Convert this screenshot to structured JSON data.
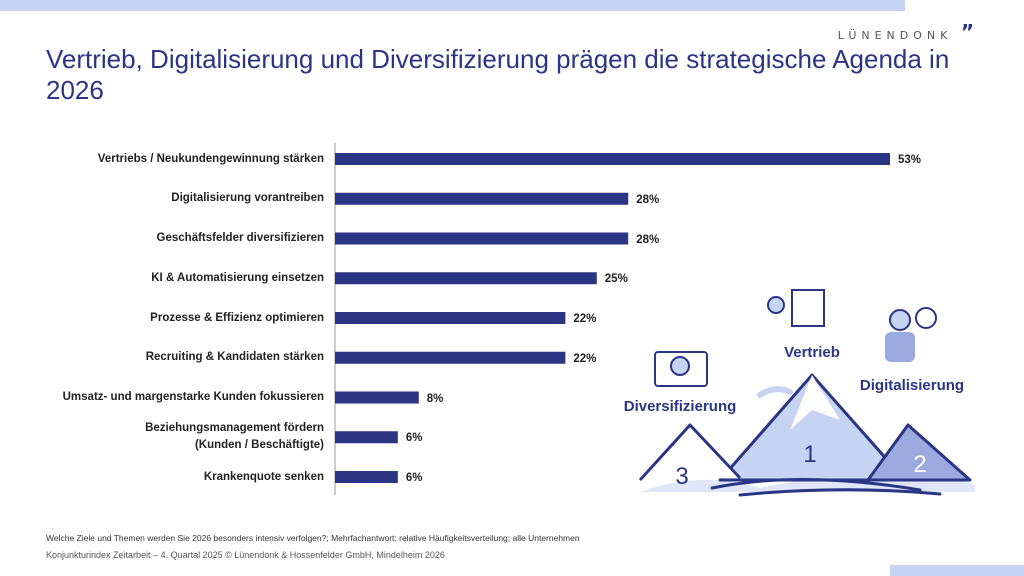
{
  "header": {
    "logo": "LÜNENDONK",
    "title": "Vertrieb, Digitalisierung und Diversifizierung prägen die strategische Agenda in 2026"
  },
  "chart_data": {
    "type": "bar",
    "orientation": "horizontal",
    "color": "#2b3586",
    "categories": [
      "Vertriebs / Neukundengewinnung stärken",
      "Digitalisierung vorantreiben",
      "Geschäftsfelder diversifizieren",
      "KI & Automatisierung einsetzen",
      "Prozesse & Effizienz optimieren",
      "Recruiting & Kandidaten stärken",
      "Umsatz- und margenstarke Kunden fokussieren",
      "Beziehungsmanagement  fördern\n(Kunden / Beschäftigte)",
      "Krankenquote senken"
    ],
    "values": [
      53,
      28,
      28,
      25,
      22,
      22,
      8,
      6,
      6
    ],
    "value_labels": [
      "53%",
      "28%",
      "28%",
      "25%",
      "22%",
      "22%",
      "8%",
      "6%",
      "6%"
    ]
  },
  "illustration": {
    "peaks": [
      {
        "label": "Vertrieb",
        "rank": "1"
      },
      {
        "label": "Digitalisierung",
        "rank": "2"
      },
      {
        "label": "Diversifizierung",
        "rank": "3"
      }
    ]
  },
  "footer": {
    "note": "Welche Ziele und Themen werden Sie 2026 besonders intensiv verfolgen?; Mehrfachantwort; relative Häufigkeitsverteilung; alle Unternehmen",
    "source": "Konjunkturindex Zeitarbeit – 4. Quartal 2025 © Lünendonk & Hossenfelder GmbH, Mindelheim 2026"
  }
}
